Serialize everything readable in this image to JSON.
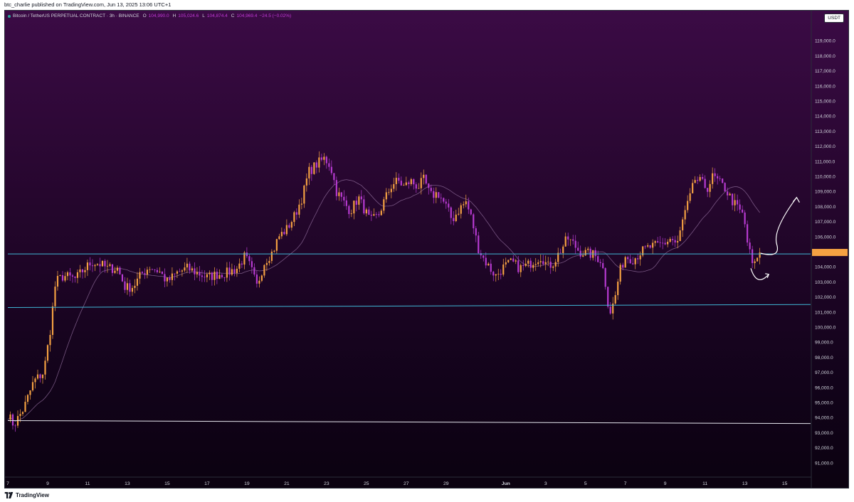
{
  "publish": {
    "text": "btc_charlie published on TradingView.com, Jun 13, 2025 13:06 UTC+1"
  },
  "legend": {
    "symbol": "Bitcoin / TetherUS PERPETUAL CONTRACT · 3h · BINANCE",
    "open_label": "O",
    "open": "104,990.0",
    "high_label": "H",
    "high": "105,024.6",
    "low_label": "L",
    "low": "104,874.4",
    "close_label": "C",
    "close": "104,969.4",
    "change": "−24.5 (−0.02%)"
  },
  "currency": "USDT",
  "footer": {
    "brand": "TradingView",
    "logo_icon": "tradingview-logo-icon"
  },
  "colors": {
    "up": "#f5a142",
    "down": "#b83bd2",
    "cyan_level": "#3fb7d6",
    "white_level": "#e6e6ee",
    "ma": "#8d6a98"
  },
  "chart_data": {
    "type": "candlestick",
    "title": "Bitcoin / TetherUS PERPETUAL CONTRACT · 3h · BINANCE",
    "ylim": [
      90400,
      120000
    ],
    "y_ticks": [
      91000,
      92000,
      93000,
      94000,
      95000,
      96000,
      97000,
      98000,
      99000,
      100000,
      101000,
      102000,
      103000,
      104000,
      105000,
      106000,
      107000,
      108000,
      109000,
      110000,
      111000,
      112000,
      113000,
      114000,
      115000,
      116000,
      117000,
      118000,
      119000
    ],
    "y_tick_labels": [
      "91,000.0",
      "92,000.0",
      "93,000.0",
      "94,000.0",
      "95,000.0",
      "96,000.0",
      "97,000.0",
      "98,000.0",
      "99,000.0",
      "100,000.0",
      "101,000.0",
      "102,000.0",
      "103,000.0",
      "104,000.0",
      "105,000.0",
      "106,000.0",
      "107,000.0",
      "108,000.0",
      "109,000.0",
      "110,000.0",
      "111,000.0",
      "112,000.0",
      "113,000.0",
      "114,000.0",
      "115,000.0",
      "116,000.0",
      "117,000.0",
      "118,000.0",
      "119,000.0"
    ],
    "x_range_days": [
      0,
      40.3
    ],
    "x_ticks": [
      {
        "day": 0,
        "label": "7"
      },
      {
        "day": 2,
        "label": "9"
      },
      {
        "day": 4,
        "label": "11"
      },
      {
        "day": 6,
        "label": "13"
      },
      {
        "day": 8,
        "label": "15"
      },
      {
        "day": 10,
        "label": "17"
      },
      {
        "day": 12,
        "label": "19"
      },
      {
        "day": 14,
        "label": "21"
      },
      {
        "day": 16,
        "label": "23"
      },
      {
        "day": 18,
        "label": "25"
      },
      {
        "day": 20,
        "label": "27"
      },
      {
        "day": 22,
        "label": "29"
      },
      {
        "day": 25,
        "label": "Jun"
      },
      {
        "day": 27,
        "label": "3"
      },
      {
        "day": 29,
        "label": "5"
      },
      {
        "day": 31,
        "label": "7"
      },
      {
        "day": 33,
        "label": "9"
      },
      {
        "day": 35,
        "label": "11"
      },
      {
        "day": 37,
        "label": "13"
      },
      {
        "day": 39,
        "label": "15"
      }
    ],
    "candles_per_day": 8,
    "anchors": [
      [
        0,
        94200
      ],
      [
        0.3,
        93500
      ],
      [
        0.8,
        94600
      ],
      [
        1.3,
        96400
      ],
      [
        1.8,
        97000
      ],
      [
        2.1,
        99500
      ],
      [
        2.4,
        103000
      ],
      [
        2.8,
        103400
      ],
      [
        3.4,
        103200
      ],
      [
        3.8,
        103800
      ],
      [
        4.2,
        104300
      ],
      [
        4.6,
        104200
      ],
      [
        5.0,
        103900
      ],
      [
        5.5,
        103900
      ],
      [
        5.9,
        102600
      ],
      [
        6.3,
        102700
      ],
      [
        6.7,
        103500
      ],
      [
        7.1,
        104000
      ],
      [
        7.6,
        103700
      ],
      [
        8.0,
        103000
      ],
      [
        8.5,
        103600
      ],
      [
        9.0,
        103900
      ],
      [
        9.5,
        103600
      ],
      [
        10.0,
        103300
      ],
      [
        10.5,
        103500
      ],
      [
        11.0,
        103600
      ],
      [
        11.5,
        103900
      ],
      [
        11.9,
        104700
      ],
      [
        12.2,
        103900
      ],
      [
        12.5,
        102700
      ],
      [
        12.9,
        104400
      ],
      [
        13.3,
        105000
      ],
      [
        13.6,
        106000
      ],
      [
        14.0,
        106500
      ],
      [
        14.4,
        107400
      ],
      [
        14.8,
        108700
      ],
      [
        15.1,
        110300
      ],
      [
        15.5,
        110800
      ],
      [
        15.9,
        111200
      ],
      [
        16.2,
        110700
      ],
      [
        16.5,
        109000
      ],
      [
        16.9,
        108200
      ],
      [
        17.2,
        107700
      ],
      [
        17.6,
        108600
      ],
      [
        17.9,
        107800
      ],
      [
        18.2,
        107000
      ],
      [
        18.6,
        107400
      ],
      [
        18.9,
        108400
      ],
      [
        19.3,
        109500
      ],
      [
        19.6,
        109700
      ],
      [
        19.9,
        109300
      ],
      [
        20.2,
        109700
      ],
      [
        20.6,
        109300
      ],
      [
        20.9,
        109800
      ],
      [
        21.2,
        108700
      ],
      [
        21.6,
        108900
      ],
      [
        22.0,
        108000
      ],
      [
        22.3,
        107100
      ],
      [
        22.7,
        107900
      ],
      [
        23.0,
        108300
      ],
      [
        23.3,
        107100
      ],
      [
        23.6,
        105300
      ],
      [
        23.9,
        104500
      ],
      [
        24.2,
        103900
      ],
      [
        24.5,
        103400
      ],
      [
        24.9,
        104000
      ],
      [
        25.3,
        104300
      ],
      [
        25.7,
        103900
      ],
      [
        26.1,
        104100
      ],
      [
        26.4,
        104400
      ],
      [
        26.8,
        104700
      ],
      [
        27.1,
        104000
      ],
      [
        27.4,
        104300
      ],
      [
        27.8,
        105200
      ],
      [
        28.1,
        105900
      ],
      [
        28.4,
        105500
      ],
      [
        28.7,
        105000
      ],
      [
        29.0,
        104900
      ],
      [
        29.4,
        104800
      ],
      [
        29.8,
        104400
      ],
      [
        30.0,
        102900
      ],
      [
        30.2,
        100900
      ],
      [
        30.45,
        101700
      ],
      [
        30.7,
        103600
      ],
      [
        31.0,
        104700
      ],
      [
        31.4,
        104500
      ],
      [
        31.8,
        105000
      ],
      [
        32.2,
        105300
      ],
      [
        32.6,
        105400
      ],
      [
        33.0,
        105600
      ],
      [
        33.3,
        105900
      ],
      [
        33.6,
        105400
      ],
      [
        33.9,
        107200
      ],
      [
        34.2,
        108400
      ],
      [
        34.5,
        109800
      ],
      [
        34.8,
        109600
      ],
      [
        35.1,
        109200
      ],
      [
        35.4,
        110000
      ],
      [
        35.7,
        109600
      ],
      [
        36.0,
        109200
      ],
      [
        36.4,
        108300
      ],
      [
        36.7,
        107800
      ],
      [
        36.95,
        107300
      ],
      [
        37.1,
        105800
      ],
      [
        37.3,
        104600
      ],
      [
        37.45,
        103800
      ],
      [
        37.6,
        104700
      ],
      [
        37.7,
        104950
      ]
    ],
    "levels": [
      {
        "name": "upper-cyan",
        "from": [
          0,
          104850
        ],
        "to": [
          40.3,
          104850
        ],
        "color": "#3fb7d6"
      },
      {
        "name": "lower-cyan",
        "from": [
          0,
          101300
        ],
        "to": [
          40.3,
          101500
        ],
        "color": "#3fb7d6"
      },
      {
        "name": "white-support",
        "from": [
          0,
          93800
        ],
        "to": [
          40.3,
          93600
        ],
        "color": "#e6e6ee"
      }
    ],
    "annotations": [
      {
        "type": "curved-arrow-up",
        "points": [
          [
            37.8,
            104900
          ],
          [
            38.6,
            105500
          ],
          [
            39.2,
            107500
          ],
          [
            39.6,
            108600
          ]
        ]
      },
      {
        "type": "curved-arrow-bounce",
        "points": [
          [
            37.3,
            103900
          ],
          [
            37.6,
            103100
          ],
          [
            38.2,
            103500
          ]
        ]
      }
    ]
  }
}
